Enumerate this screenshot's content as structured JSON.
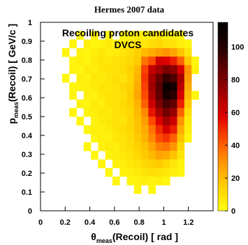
{
  "chart_data": {
    "type": "heatmap",
    "title": "Hermes 2007 data",
    "annotation_lines": [
      "Recoiling proton candidates",
      "DVCS"
    ],
    "xlabel_main": "θ",
    "xlabel_sub": "meas",
    "xlabel_rest": "(Recoil) [ rad ]",
    "ylabel_main": "p",
    "ylabel_sub": "meas",
    "ylabel_rest": "(Recoil) [ GeV/c ]",
    "xlim": [
      0,
      1.4
    ],
    "ylim": [
      0,
      1.0
    ],
    "x_ticks": [
      "0",
      "0.2",
      "0.4",
      "0.6",
      "0.8",
      "1",
      "1.2"
    ],
    "y_ticks": [
      "0",
      "0.1",
      "0.2",
      "0.3",
      "0.4",
      "0.5",
      "0.6",
      "0.7",
      "0.8",
      "0.9",
      "1"
    ],
    "z_range": [
      0,
      115
    ],
    "z_ticks": [
      "0",
      "20",
      "40",
      "60",
      "80",
      "100"
    ],
    "colormap": [
      "#ffff10",
      "#ffd000",
      "#ff9900",
      "#ff5000",
      "#e00000",
      "#a00000",
      "#600000",
      "#200000",
      "#000000"
    ],
    "x_bins": 24,
    "y_bins": 22,
    "counts": [
      [
        0,
        0,
        0,
        0,
        0,
        0,
        0,
        0,
        0,
        0,
        0,
        0,
        0,
        0,
        0,
        0,
        0,
        0,
        0,
        0,
        0,
        0,
        0,
        0
      ],
      [
        0,
        0,
        0,
        0,
        0,
        2,
        0,
        4,
        0,
        3,
        0,
        3,
        3,
        6,
        4,
        5,
        8,
        3,
        4,
        2,
        0,
        0,
        0,
        0
      ],
      [
        0,
        0,
        0,
        0,
        3,
        0,
        5,
        3,
        4,
        6,
        3,
        5,
        6,
        8,
        7,
        10,
        12,
        9,
        8,
        5,
        3,
        0,
        0,
        0
      ],
      [
        0,
        0,
        0,
        3,
        0,
        4,
        3,
        5,
        7,
        5,
        6,
        8,
        10,
        14,
        20,
        24,
        28,
        30,
        26,
        18,
        8,
        0,
        0,
        0
      ],
      [
        0,
        0,
        0,
        0,
        3,
        5,
        3,
        6,
        8,
        7,
        9,
        10,
        12,
        16,
        36,
        44,
        60,
        58,
        52,
        40,
        16,
        3,
        0,
        0
      ],
      [
        0,
        0,
        0,
        0,
        4,
        3,
        6,
        5,
        7,
        9,
        8,
        11,
        14,
        20,
        46,
        64,
        72,
        80,
        76,
        60,
        30,
        5,
        0,
        0
      ],
      [
        0,
        0,
        0,
        3,
        0,
        5,
        4,
        7,
        6,
        8,
        10,
        9,
        13,
        22,
        48,
        70,
        84,
        96,
        90,
        70,
        28,
        0,
        0,
        0
      ],
      [
        0,
        0,
        0,
        0,
        3,
        4,
        5,
        6,
        8,
        7,
        9,
        12,
        14,
        24,
        46,
        72,
        88,
        110,
        104,
        66,
        24,
        0,
        0,
        0
      ],
      [
        0,
        0,
        0,
        0,
        3,
        0,
        5,
        4,
        7,
        9,
        8,
        10,
        15,
        26,
        44,
        68,
        86,
        104,
        98,
        60,
        20,
        3,
        0,
        0
      ],
      [
        0,
        0,
        0,
        0,
        0,
        4,
        3,
        6,
        5,
        8,
        9,
        11,
        14,
        22,
        40,
        62,
        80,
        92,
        86,
        52,
        16,
        0,
        0,
        0
      ],
      [
        0,
        0,
        0,
        0,
        3,
        0,
        4,
        5,
        7,
        6,
        8,
        10,
        12,
        20,
        32,
        54,
        70,
        82,
        74,
        40,
        10,
        0,
        0,
        0
      ],
      [
        0,
        0,
        0,
        0,
        0,
        3,
        0,
        4,
        6,
        7,
        9,
        8,
        13,
        18,
        28,
        44,
        58,
        72,
        62,
        30,
        6,
        0,
        0,
        0
      ],
      [
        0,
        0,
        0,
        0,
        0,
        0,
        3,
        5,
        4,
        6,
        8,
        10,
        12,
        18,
        24,
        36,
        50,
        60,
        52,
        24,
        5,
        0,
        0,
        0
      ],
      [
        0,
        0,
        0,
        0,
        0,
        0,
        0,
        3,
        5,
        4,
        7,
        9,
        11,
        16,
        22,
        32,
        44,
        48,
        40,
        18,
        3,
        0,
        0,
        0
      ],
      [
        0,
        0,
        0,
        0,
        0,
        0,
        3,
        0,
        4,
        6,
        5,
        8,
        10,
        14,
        18,
        26,
        34,
        36,
        30,
        12,
        0,
        0,
        0,
        0
      ],
      [
        0,
        0,
        0,
        0,
        0,
        0,
        0,
        3,
        0,
        4,
        5,
        7,
        9,
        12,
        16,
        20,
        26,
        24,
        18,
        8,
        0,
        0,
        0,
        0
      ],
      [
        0,
        0,
        0,
        0,
        0,
        0,
        0,
        0,
        3,
        0,
        4,
        5,
        7,
        9,
        12,
        14,
        16,
        12,
        8,
        4,
        0,
        0,
        0,
        0
      ],
      [
        0,
        0,
        0,
        0,
        0,
        0,
        0,
        0,
        0,
        3,
        0,
        4,
        5,
        6,
        8,
        10,
        9,
        7,
        5,
        3,
        0,
        0,
        0,
        0
      ],
      [
        0,
        0,
        0,
        0,
        0,
        0,
        0,
        0,
        0,
        0,
        3,
        0,
        3,
        4,
        5,
        4,
        5,
        3,
        0,
        0,
        0,
        0,
        0,
        0
      ],
      [
        0,
        0,
        0,
        0,
        0,
        0,
        0,
        0,
        0,
        0,
        0,
        0,
        0,
        3,
        0,
        3,
        0,
        0,
        0,
        0,
        0,
        0,
        0,
        0
      ],
      [
        0,
        0,
        0,
        0,
        0,
        0,
        0,
        0,
        0,
        0,
        0,
        0,
        0,
        0,
        0,
        0,
        0,
        0,
        0,
        0,
        0,
        0,
        0,
        0
      ],
      [
        0,
        0,
        0,
        0,
        0,
        0,
        0,
        0,
        0,
        0,
        0,
        0,
        0,
        0,
        0,
        0,
        0,
        0,
        0,
        0,
        0,
        0,
        0,
        0
      ]
    ]
  }
}
